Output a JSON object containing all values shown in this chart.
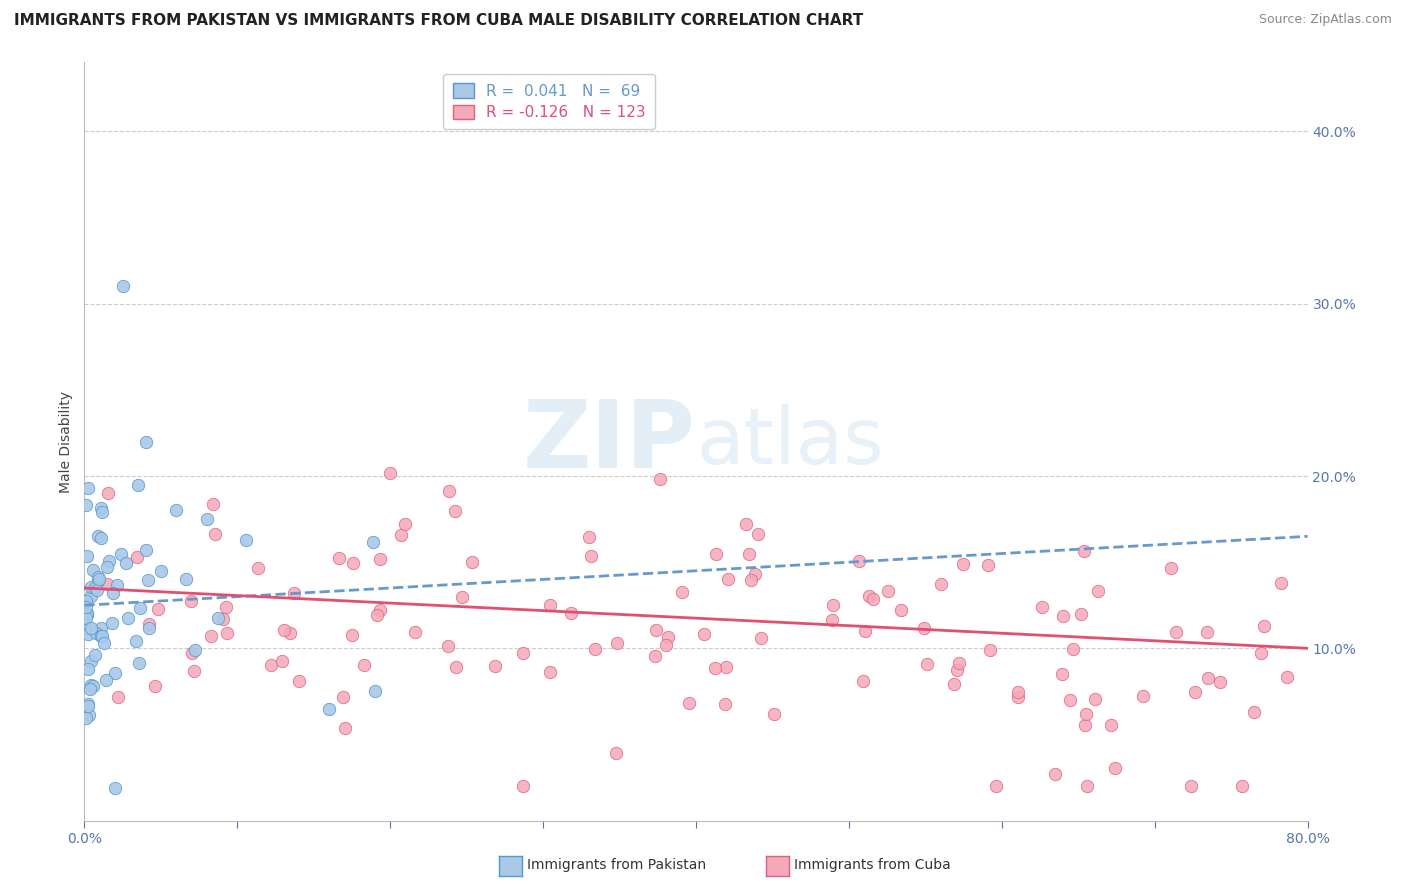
{
  "title": "IMMIGRANTS FROM PAKISTAN VS IMMIGRANTS FROM CUBA MALE DISABILITY CORRELATION CHART",
  "source": "Source: ZipAtlas.com",
  "ylabel": "Male Disability",
  "xlim": [
    0.0,
    0.8
  ],
  "ylim": [
    0.0,
    0.44
  ],
  "xticks": [
    0.0,
    0.1,
    0.2,
    0.3,
    0.4,
    0.5,
    0.6,
    0.7,
    0.8
  ],
  "yticks_right": [
    0.1,
    0.2,
    0.3,
    0.4
  ],
  "pakistan_color": "#aac8e8",
  "pakistan_edge": "#5599cc",
  "cuba_color": "#f4a8b8",
  "cuba_edge": "#e06080",
  "pakistan_R": 0.041,
  "pakistan_N": 69,
  "cuba_R": -0.126,
  "cuba_N": 123,
  "trend_pakistan_color": "#6699cc",
  "trend_cuba_color": "#e05070",
  "background_color": "#ffffff",
  "watermark_zip": "ZIP",
  "watermark_atlas": "atlas",
  "legend_pakistan_label": "Immigrants from Pakistan",
  "legend_cuba_label": "Immigrants from Cuba"
}
